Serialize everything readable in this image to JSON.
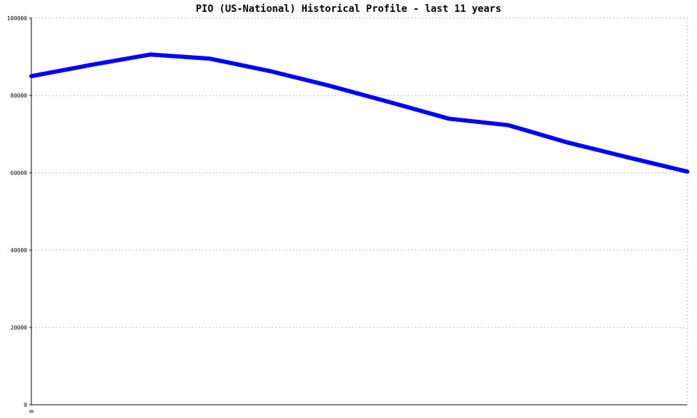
{
  "chart_data": {
    "type": "line",
    "title": "PIO (US-National) Historical Profile - last 11 years",
    "xlabel": "",
    "ylabel": "",
    "ylim": [
      0,
      100000
    ],
    "y_ticks": [
      "0",
      "20000",
      "40000",
      "60000",
      "80000",
      "100000"
    ],
    "x_tick_labels": [
      "0"
    ],
    "grid": true,
    "legend": "none",
    "series": [
      {
        "color": "#0000ff",
        "values": [
          85000,
          87900,
          90600,
          89500,
          86300,
          82500,
          78300,
          74000,
          72300,
          67800,
          64000,
          60300
        ]
      }
    ]
  }
}
